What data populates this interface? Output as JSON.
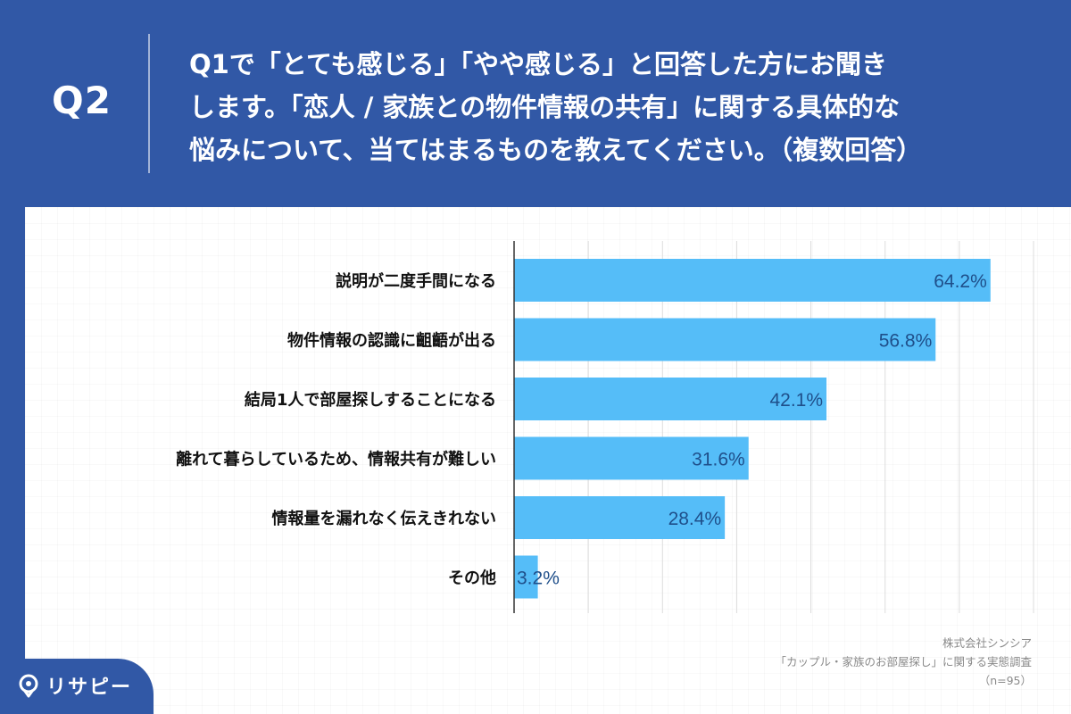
{
  "header": {
    "q_label": "Q2",
    "question_lines": [
      "Q1で「とても感じる」「やや感じる」と回答した方にお聞き",
      "します。「恋人 / 家族との物件情報の共有」に関する具体的な",
      "悩みについて、当てはまるものを教えてください。（複数回答）"
    ]
  },
  "colors": {
    "background": "#3158a6",
    "bar": "#55bdf8",
    "value_text": "#1f4f8a",
    "label_text": "#111111"
  },
  "chart_data": {
    "type": "bar",
    "orientation": "horizontal",
    "categories": [
      "説明が二度手間になる",
      "物件情報の認識に齟齬が出る",
      "結局1人で部屋探しすることになる",
      "離れて暮らしているため、情報共有が難しい",
      "情報量を漏れなく伝えきれない",
      "その他"
    ],
    "values": [
      64.2,
      56.8,
      42.1,
      31.6,
      28.4,
      3.2
    ],
    "value_labels": [
      "64.2%",
      "56.8%",
      "42.1%",
      "31.6%",
      "28.4%",
      "3.2%"
    ],
    "xlim": [
      0,
      70
    ],
    "grid": true
  },
  "source": {
    "company": "株式会社シンシア",
    "survey": "「カップル・家族のお部屋探し」に関する実態調査",
    "n": "（n=95）"
  },
  "brand": {
    "name": "リサピー",
    "icon": "pin-icon"
  }
}
